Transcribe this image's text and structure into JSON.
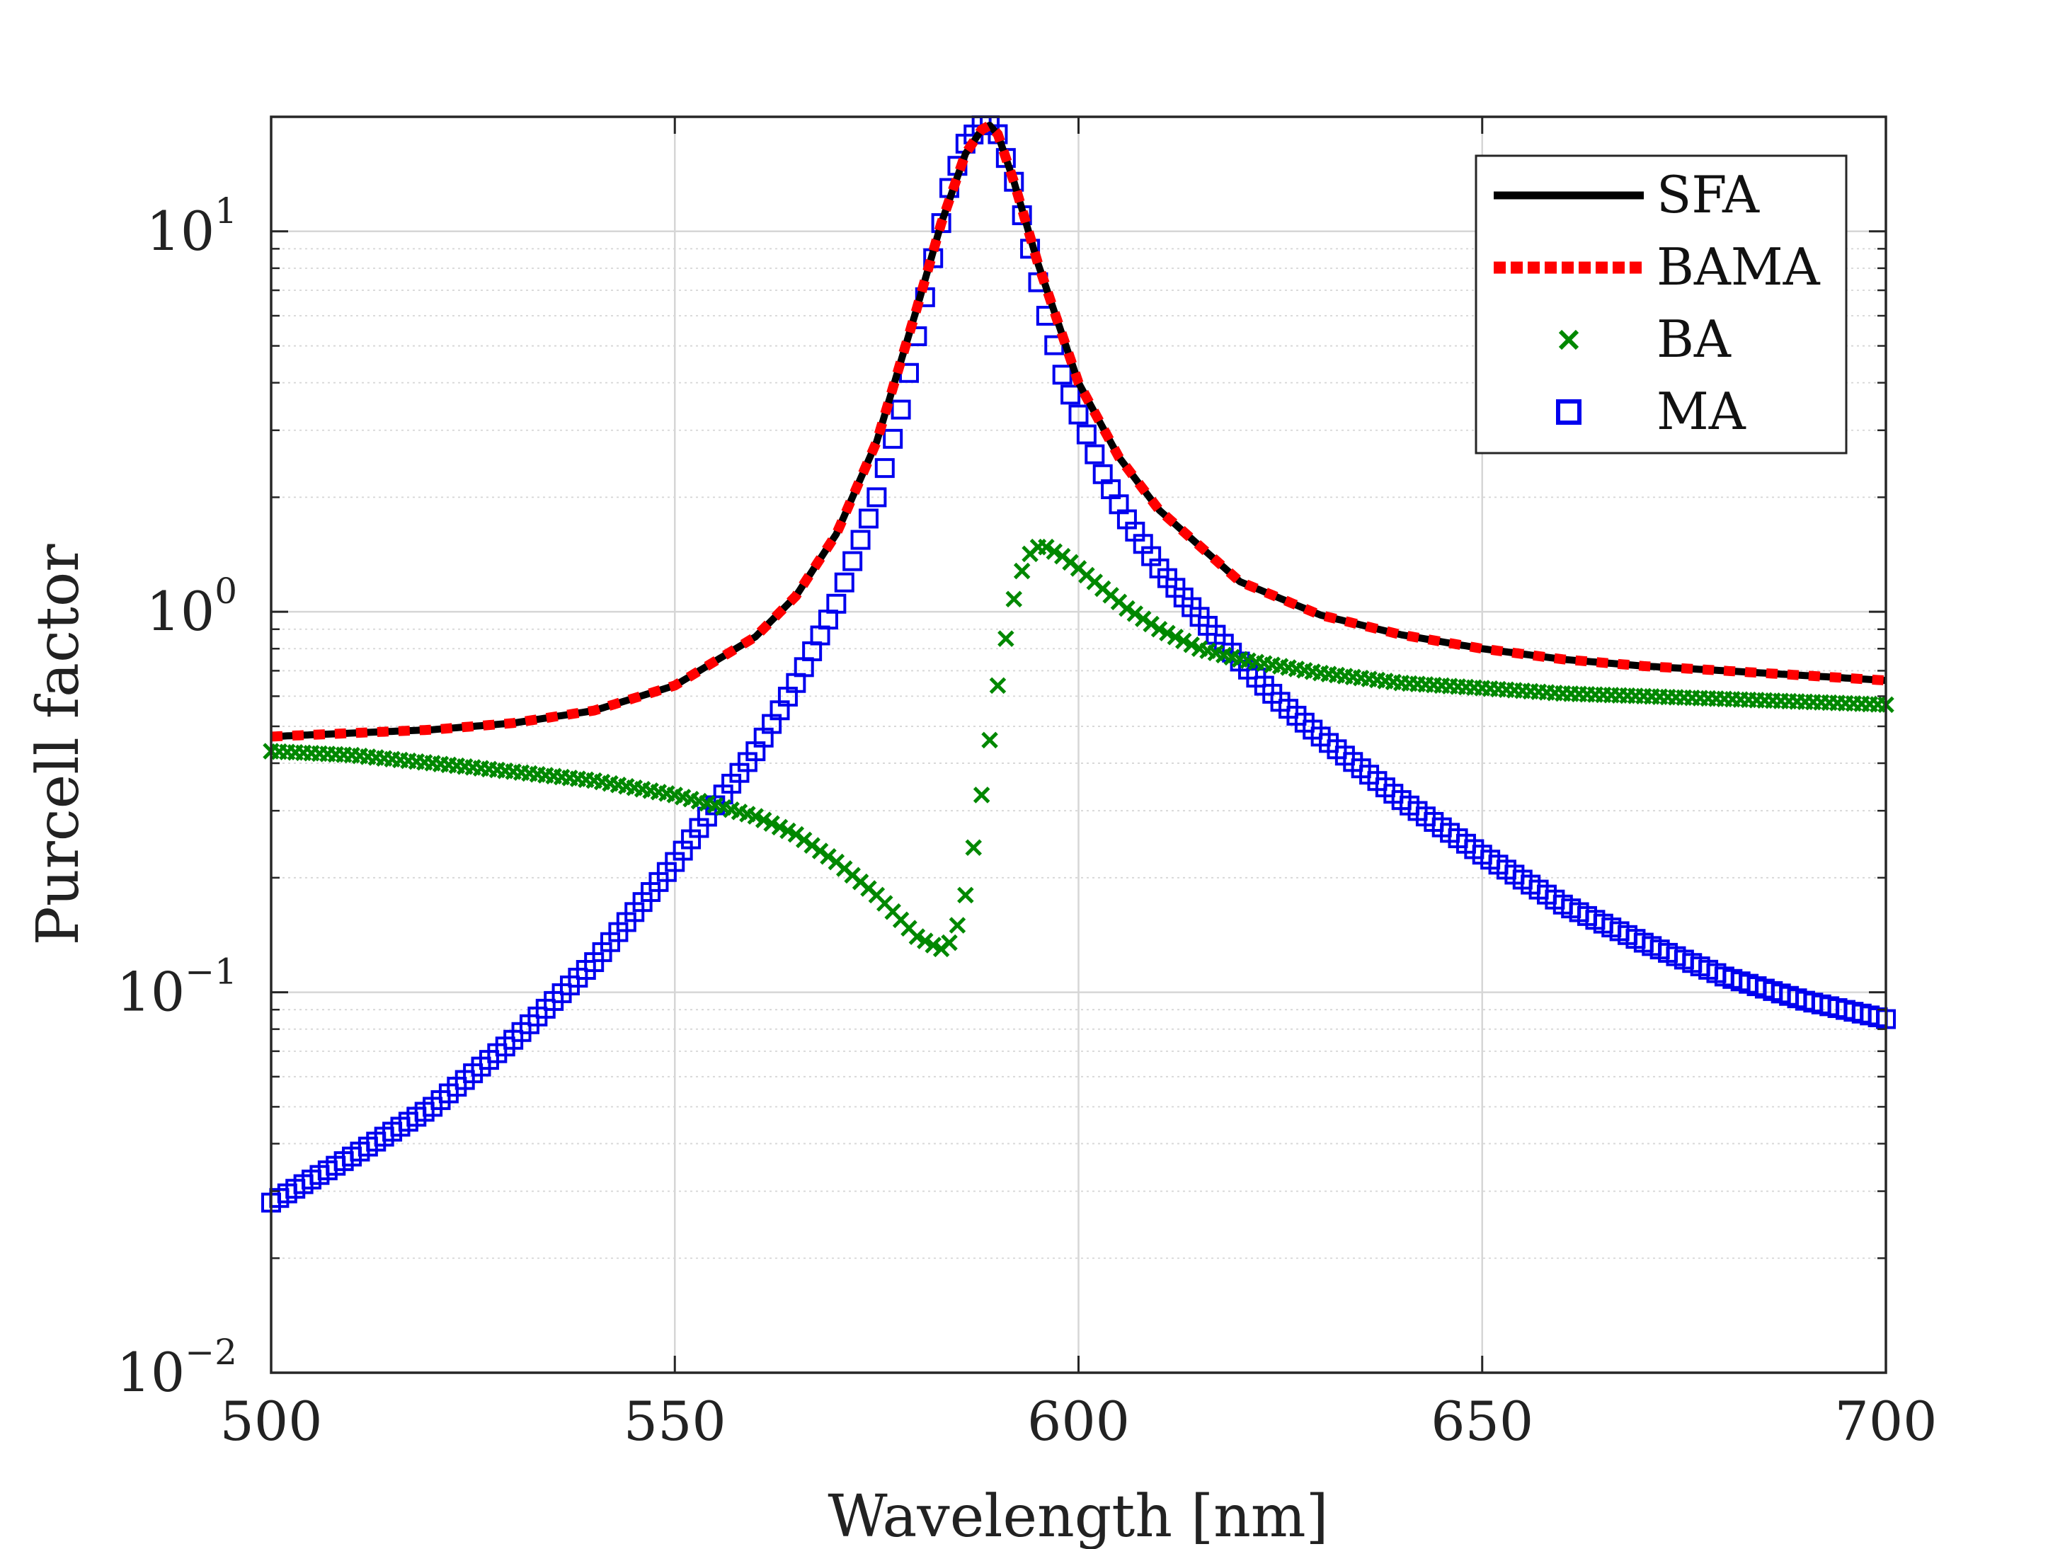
{
  "chart_data": {
    "type": "line",
    "xlabel": "Wavelength [nm]",
    "ylabel": "Purcell factor",
    "xlim": [
      500,
      700
    ],
    "ylim": [
      0.01,
      20
    ],
    "yscale": "log",
    "grid": true,
    "legend_position": "top-right",
    "x_ticks": [
      "500",
      "550",
      "600",
      "650",
      "700"
    ],
    "y_ticks": [
      {
        "base": "10",
        "exp": "1",
        "value": 10
      },
      {
        "base": "10",
        "exp": "0",
        "value": 1
      },
      {
        "base": "10",
        "exp": "−1",
        "value": 0.1
      },
      {
        "base": "10",
        "exp": "−2",
        "value": 0.01
      }
    ],
    "peak_wavelength": 589,
    "series": [
      {
        "name": "SFA",
        "style": "solid",
        "color": "#000000",
        "x": [
          500,
          510,
          520,
          530,
          540,
          550,
          560,
          565,
          570,
          575,
          580,
          583,
          586,
          588,
          589,
          590,
          592,
          595,
          600,
          605,
          610,
          620,
          630,
          640,
          650,
          660,
          670,
          680,
          690,
          700
        ],
        "y": [
          0.47,
          0.48,
          0.49,
          0.51,
          0.55,
          0.64,
          0.86,
          1.1,
          1.6,
          2.8,
          6.3,
          10.5,
          16.0,
          18.5,
          19.0,
          18.0,
          13.5,
          8.2,
          4.0,
          2.55,
          1.85,
          1.2,
          0.98,
          0.87,
          0.8,
          0.75,
          0.72,
          0.7,
          0.68,
          0.66
        ]
      },
      {
        "name": "BAMA",
        "style": "dotted",
        "color": "#ff0000",
        "x": [
          500,
          510,
          520,
          530,
          540,
          550,
          560,
          565,
          570,
          575,
          580,
          583,
          586,
          588,
          589,
          590,
          592,
          595,
          600,
          605,
          610,
          620,
          630,
          640,
          650,
          660,
          670,
          680,
          690,
          700
        ],
        "y": [
          0.47,
          0.48,
          0.49,
          0.51,
          0.55,
          0.64,
          0.86,
          1.1,
          1.6,
          2.8,
          6.3,
          10.5,
          16.0,
          18.5,
          19.0,
          18.0,
          13.5,
          8.2,
          4.0,
          2.55,
          1.85,
          1.2,
          0.98,
          0.87,
          0.8,
          0.75,
          0.72,
          0.7,
          0.68,
          0.66
        ]
      },
      {
        "name": "BA",
        "style": "marker-x",
        "color": "#008800",
        "x": [
          500,
          510,
          520,
          530,
          540,
          550,
          555,
          560,
          565,
          570,
          575,
          578,
          580,
          582,
          583,
          584,
          585,
          586,
          587,
          588,
          589,
          590,
          591,
          592,
          593,
          594,
          595,
          596,
          598,
          600,
          603,
          606,
          610,
          615,
          620,
          630,
          640,
          650,
          660,
          670,
          680,
          690,
          700
        ],
        "y": [
          0.43,
          0.42,
          0.4,
          0.38,
          0.36,
          0.33,
          0.31,
          0.29,
          0.26,
          0.22,
          0.18,
          0.155,
          0.14,
          0.133,
          0.13,
          0.135,
          0.15,
          0.18,
          0.24,
          0.33,
          0.46,
          0.64,
          0.85,
          1.08,
          1.28,
          1.42,
          1.48,
          1.48,
          1.4,
          1.3,
          1.15,
          1.02,
          0.9,
          0.8,
          0.75,
          0.69,
          0.65,
          0.63,
          0.61,
          0.6,
          0.59,
          0.58,
          0.57
        ]
      },
      {
        "name": "MA",
        "style": "marker-square",
        "color": "#0000ee",
        "x": [
          500,
          510,
          520,
          530,
          540,
          550,
          555,
          560,
          565,
          570,
          575,
          578,
          580,
          582,
          584,
          586,
          588,
          589,
          590,
          592,
          594,
          596,
          598,
          600,
          603,
          606,
          610,
          615,
          620,
          625,
          630,
          640,
          650,
          660,
          670,
          680,
          690,
          700
        ],
        "y": [
          0.028,
          0.037,
          0.05,
          0.075,
          0.12,
          0.22,
          0.31,
          0.43,
          0.65,
          1.05,
          2.0,
          3.4,
          5.3,
          8.5,
          13.0,
          17.0,
          19.0,
          19.0,
          18.0,
          13.5,
          9.0,
          6.0,
          4.2,
          3.3,
          2.3,
          1.75,
          1.3,
          0.97,
          0.74,
          0.58,
          0.47,
          0.32,
          0.23,
          0.17,
          0.135,
          0.11,
          0.095,
          0.085
        ]
      }
    ]
  }
}
